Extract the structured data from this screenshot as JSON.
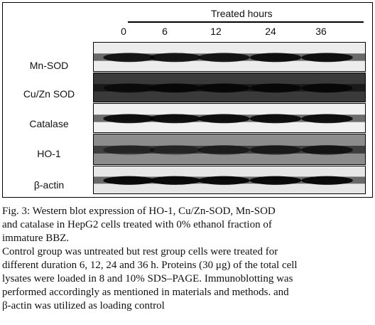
{
  "figure": {
    "header": "Treated hours",
    "time_points": [
      "0",
      "6",
      "12",
      "24",
      "36"
    ],
    "rows": [
      {
        "label": "Mn-SOD",
        "background": "#ececec",
        "band_intensity": [
          0.85,
          0.85,
          0.85,
          0.9,
          0.9
        ]
      },
      {
        "label": "Cu/Zn SOD",
        "background": "#3a3a3a",
        "band_intensity": [
          0.75,
          0.85,
          0.85,
          0.85,
          0.9
        ]
      },
      {
        "label": "Catalase",
        "background": "#f0f0f0",
        "band_intensity": [
          0.9,
          0.9,
          0.9,
          0.9,
          0.9
        ]
      },
      {
        "label": "HO-1",
        "background": "#8c8c8c",
        "band_intensity": [
          0.45,
          0.45,
          0.6,
          0.65,
          0.75
        ]
      },
      {
        "label": "β-actin",
        "background": "#e6e6e6",
        "band_intensity": [
          0.95,
          0.95,
          0.95,
          0.95,
          0.95
        ]
      }
    ]
  },
  "caption": {
    "line1": "Fig. 3: Western blot expression of HO-1, Cu/Zn-SOD, Mn-SOD",
    "line2": "and catalase in HepG2 cells treated with 0% ethanol fraction of",
    "line3": "immature BBZ.",
    "line4": "Control group was untreated but rest group cells were treated for",
    "line5": "different duration 6, 12, 24 and 36 h. Proteins (30 μg) of the total cell",
    "line6": "lysates were loaded in 8 and 10% SDS–PAGE. Immunoblotting was",
    "line7": "performed accordingly as mentioned in materials and methods. and",
    "line8": "β-actin was utilized as loading control"
  }
}
